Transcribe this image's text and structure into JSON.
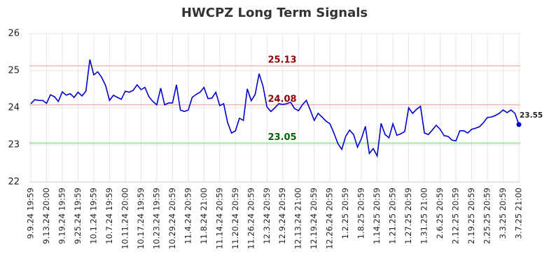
{
  "chart_data": {
    "type": "line",
    "title": "HWCPZ Long Term Signals",
    "categories": [
      "9.9.24 19:59",
      null,
      null,
      null,
      "9.13.24 20:00",
      null,
      null,
      null,
      "9.19.24 19:59",
      null,
      null,
      null,
      "9.25.24 19:59",
      null,
      null,
      null,
      "10.1.24 19:59",
      null,
      null,
      null,
      "10.7.24 19:59",
      null,
      null,
      null,
      "10.11.24 20:00",
      null,
      null,
      null,
      "10.17.24 19:59",
      null,
      null,
      null,
      "10.23.24 19:59",
      null,
      null,
      null,
      "10.29.24 20:59",
      null,
      null,
      null,
      "11.4.24 20:59",
      null,
      null,
      null,
      "11.8.24 21:00",
      null,
      null,
      null,
      "11.14.24 20:59",
      null,
      null,
      null,
      "11.20.24 20:59",
      null,
      null,
      null,
      "11.26.24 20:59",
      null,
      null,
      null,
      "12.3.24 20:59",
      null,
      null,
      null,
      "12.9.24 20:59",
      null,
      null,
      null,
      "12.13.24 21:00",
      null,
      null,
      null,
      "12.19.24 20:59",
      null,
      null,
      null,
      "12.26.24 20:59",
      null,
      null,
      null,
      "1.2.25 20:59",
      null,
      null,
      null,
      "1.8.25 20:59",
      null,
      null,
      null,
      "1.14.25 20:59",
      null,
      null,
      null,
      "1.21.25 20:59",
      null,
      null,
      null,
      "1.27.25 20:59",
      null,
      null,
      null,
      "1.31.25 21:00",
      null,
      null,
      null,
      "2.6.25 20:59",
      null,
      null,
      null,
      "2.12.25 20:59",
      null,
      null,
      null,
      "2.19.25 20:59",
      null,
      null,
      null,
      "2.25.25 20:59",
      null,
      null,
      null,
      "3.3.25 20:59",
      null,
      null,
      null,
      "3.7.25 21:00"
    ],
    "series": [
      {
        "color": "#0000cc",
        "values": [
          24.11,
          24.22,
          24.2,
          24.2,
          24.12,
          24.35,
          24.3,
          24.17,
          24.43,
          24.34,
          24.38,
          24.28,
          24.42,
          24.32,
          24.45,
          25.3,
          24.89,
          24.97,
          24.82,
          24.6,
          24.2,
          24.34,
          24.28,
          24.23,
          24.45,
          24.42,
          24.47,
          24.62,
          24.49,
          24.55,
          24.3,
          24.17,
          24.08,
          24.53,
          24.08,
          24.13,
          24.13,
          24.62,
          23.94,
          23.9,
          23.94,
          24.28,
          24.36,
          24.42,
          24.55,
          24.25,
          24.26,
          24.42,
          24.06,
          24.11,
          23.6,
          23.32,
          23.38,
          23.72,
          23.66,
          24.51,
          24.19,
          24.36,
          24.92,
          24.58,
          24.02,
          23.9,
          24.0,
          24.11,
          24.09,
          24.11,
          24.15,
          23.98,
          23.92,
          24.08,
          24.2,
          23.94,
          23.66,
          23.85,
          23.75,
          23.64,
          23.57,
          23.32,
          23.04,
          22.88,
          23.23,
          23.4,
          23.28,
          22.94,
          23.17,
          23.5,
          22.77,
          22.9,
          22.7,
          23.58,
          23.28,
          23.19,
          23.57,
          23.26,
          23.3,
          23.36,
          24.0,
          23.85,
          23.96,
          24.04,
          23.32,
          23.28,
          23.4,
          23.53,
          23.42,
          23.25,
          23.23,
          23.13,
          23.11,
          23.38,
          23.38,
          23.32,
          23.42,
          23.45,
          23.49,
          23.6,
          23.74,
          23.75,
          23.79,
          23.85,
          23.94,
          23.87,
          23.94,
          23.85,
          23.55
        ]
      }
    ],
    "reference_lines": [
      {
        "value": 25.13,
        "color": "#f4b6b6",
        "label_color": "#8b0000"
      },
      {
        "value": 24.08,
        "color": "#f4b6b6",
        "label_color": "#8b0000"
      },
      {
        "value": 23.05,
        "color": "#90e090",
        "label_color": "#006400"
      }
    ],
    "ylim": [
      22,
      26
    ],
    "yticks": [
      22,
      23,
      24,
      25,
      26
    ],
    "grid": true
  }
}
